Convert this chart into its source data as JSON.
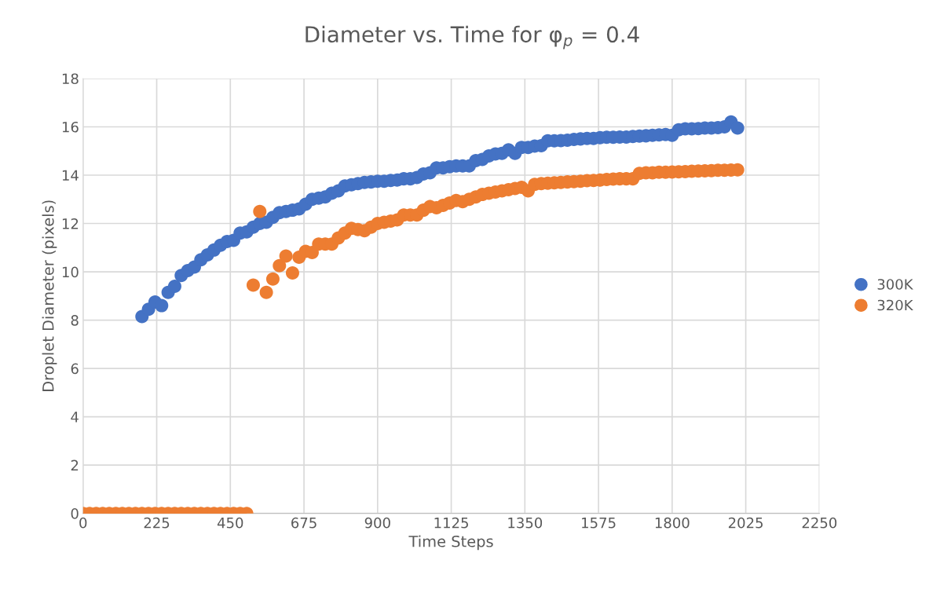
{
  "chart_data": {
    "type": "scatter",
    "title": "Diameter vs. Time for φ$_{p}$ = 0.4",
    "xlabel": "Time Steps",
    "ylabel": "Droplet Diameter (pixels)",
    "x": [
      0,
      20,
      40,
      60,
      80,
      100,
      120,
      140,
      160,
      180,
      200,
      220,
      240,
      260,
      280,
      300,
      320,
      340,
      360,
      380,
      400,
      420,
      440,
      460,
      480,
      500,
      520,
      540,
      560,
      580,
      600,
      620,
      640,
      660,
      680,
      700,
      720,
      740,
      760,
      780,
      800,
      820,
      840,
      860,
      880,
      900,
      920,
      940,
      960,
      980,
      1000,
      1020,
      1040,
      1060,
      1080,
      1100,
      1120,
      1140,
      1160,
      1180,
      1200,
      1220,
      1240,
      1260,
      1280,
      1300,
      1320,
      1340,
      1360,
      1380,
      1400,
      1420,
      1440,
      1460,
      1480,
      1500,
      1520,
      1540,
      1560,
      1580,
      1600,
      1620,
      1640,
      1660,
      1680,
      1700,
      1720,
      1740,
      1760,
      1780,
      1800,
      1820,
      1840,
      1860,
      1880,
      1900,
      1920,
      1940,
      1960,
      1980,
      2000
    ],
    "series": [
      {
        "name": "300K",
        "color": "#4472c4",
        "values": [
          null,
          null,
          null,
          null,
          null,
          null,
          null,
          null,
          null,
          8.15,
          8.45,
          8.75,
          8.6,
          9.15,
          9.4,
          9.85,
          10.05,
          10.2,
          10.5,
          10.7,
          10.9,
          11.1,
          11.25,
          11.3,
          11.6,
          11.65,
          11.85,
          12.0,
          12.05,
          12.25,
          12.45,
          12.5,
          12.55,
          12.6,
          12.8,
          13.0,
          13.05,
          13.1,
          13.25,
          13.35,
          13.55,
          13.6,
          13.65,
          13.7,
          13.72,
          13.75,
          13.75,
          13.78,
          13.8,
          13.85,
          13.85,
          13.9,
          14.05,
          14.1,
          14.3,
          14.3,
          14.35,
          14.38,
          14.38,
          14.38,
          14.6,
          14.65,
          14.8,
          14.88,
          14.9,
          15.05,
          14.9,
          15.15,
          15.15,
          15.2,
          15.22,
          15.42,
          15.42,
          15.43,
          15.45,
          15.48,
          15.5,
          15.52,
          15.52,
          15.55,
          15.57,
          15.57,
          15.58,
          15.58,
          15.6,
          15.62,
          15.63,
          15.65,
          15.67,
          15.68,
          15.65,
          15.88,
          15.92,
          15.92,
          15.93,
          15.95,
          15.95,
          15.97,
          16.0,
          16.2,
          15.95
        ]
      },
      {
        "name": "320K",
        "color": "#ed7d31",
        "values": [
          0,
          0,
          0,
          0,
          0,
          0,
          0,
          0,
          0,
          0,
          0,
          0,
          0,
          0,
          0,
          0,
          0,
          0,
          0,
          0,
          0,
          0,
          0,
          0,
          0,
          0,
          9.45,
          12.5,
          9.15,
          9.7,
          10.25,
          10.65,
          9.95,
          10.6,
          10.85,
          10.8,
          11.15,
          11.15,
          11.15,
          11.4,
          11.6,
          11.8,
          11.75,
          11.7,
          11.85,
          12.0,
          12.05,
          12.1,
          12.15,
          12.35,
          12.35,
          12.35,
          12.55,
          12.7,
          12.65,
          12.75,
          12.85,
          12.95,
          12.9,
          13.0,
          13.1,
          13.2,
          13.25,
          13.3,
          13.35,
          13.4,
          13.45,
          13.5,
          13.35,
          13.62,
          13.65,
          13.67,
          13.68,
          13.7,
          13.72,
          13.73,
          13.75,
          13.77,
          13.78,
          13.8,
          13.82,
          13.84,
          13.85,
          13.85,
          13.85,
          14.07,
          14.1,
          14.1,
          14.12,
          14.12,
          14.13,
          14.14,
          14.15,
          14.16,
          14.17,
          14.18,
          14.19,
          14.2,
          14.2,
          14.21,
          14.22
        ]
      }
    ],
    "xlim": [
      0,
      2250
    ],
    "xticks": [
      0,
      225,
      450,
      675,
      900,
      1125,
      1350,
      1575,
      1800,
      2025,
      2250
    ],
    "ylim": [
      0,
      18
    ],
    "yticks": [
      0,
      2,
      4,
      6,
      8,
      10,
      12,
      14,
      16,
      18
    ],
    "grid": true,
    "legend": "right",
    "marker": "circle"
  }
}
